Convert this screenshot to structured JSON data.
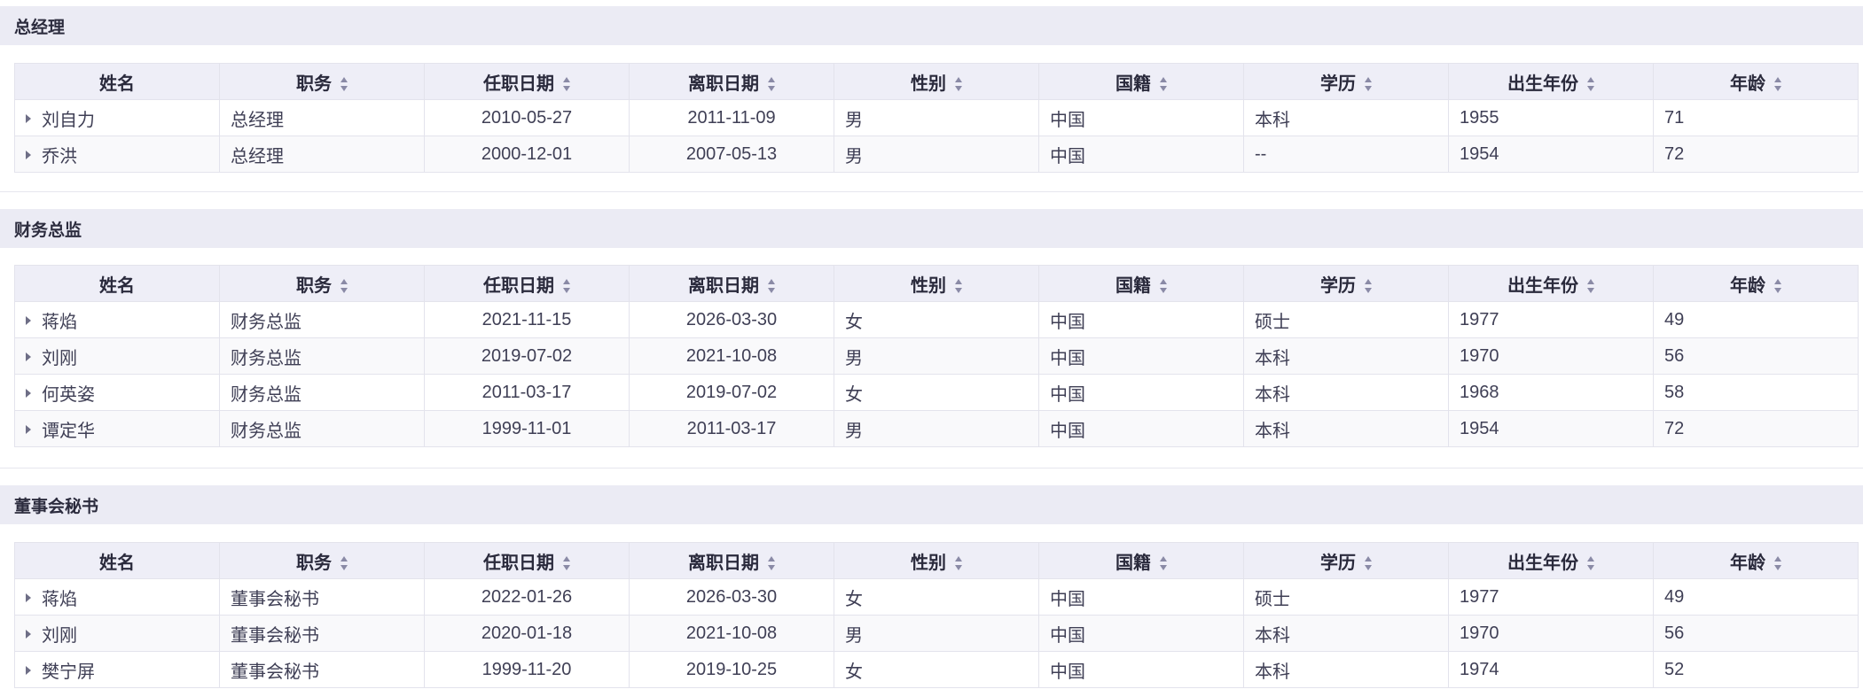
{
  "columns": [
    "姓名",
    "职务",
    "任职日期",
    "离职日期",
    "性别",
    "国籍",
    "学历",
    "出生年份",
    "年龄"
  ],
  "sortable": [
    false,
    true,
    true,
    true,
    true,
    true,
    true,
    true,
    true
  ],
  "sections": [
    {
      "title": "总经理",
      "rows": [
        [
          "刘自力",
          "总经理",
          "2010-05-27",
          "2011-11-09",
          "男",
          "中国",
          "本科",
          "1955",
          "71"
        ],
        [
          "乔洪",
          "总经理",
          "2000-12-01",
          "2007-05-13",
          "男",
          "中国",
          "--",
          "1954",
          "72"
        ]
      ]
    },
    {
      "title": "财务总监",
      "rows": [
        [
          "蒋焰",
          "财务总监",
          "2021-11-15",
          "2026-03-30",
          "女",
          "中国",
          "硕士",
          "1977",
          "49"
        ],
        [
          "刘刚",
          "财务总监",
          "2019-07-02",
          "2021-10-08",
          "男",
          "中国",
          "本科",
          "1970",
          "56"
        ],
        [
          "何英姿",
          "财务总监",
          "2011-03-17",
          "2019-07-02",
          "女",
          "中国",
          "本科",
          "1968",
          "58"
        ],
        [
          "谭定华",
          "财务总监",
          "1999-11-01",
          "2011-03-17",
          "男",
          "中国",
          "本科",
          "1954",
          "72"
        ]
      ]
    },
    {
      "title": "董事会秘书",
      "rows": [
        [
          "蒋焰",
          "董事会秘书",
          "2022-01-26",
          "2026-03-30",
          "女",
          "中国",
          "硕士",
          "1977",
          "49"
        ],
        [
          "刘刚",
          "董事会秘书",
          "2020-01-18",
          "2021-10-08",
          "男",
          "中国",
          "本科",
          "1970",
          "56"
        ],
        [
          "樊宁屏",
          "董事会秘书",
          "1999-11-20",
          "2019-10-25",
          "女",
          "中国",
          "本科",
          "1974",
          "52"
        ]
      ]
    }
  ]
}
